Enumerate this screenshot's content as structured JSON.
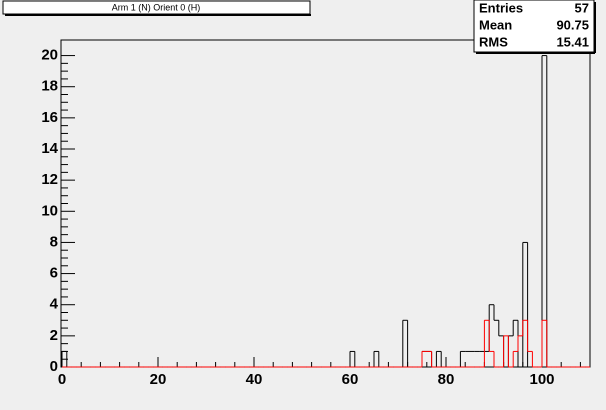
{
  "chart_data": {
    "type": "histogram",
    "title": "Arm 1 (N) Orient 0 (H)",
    "bins": [
      0,
      1,
      2,
      3,
      4,
      5,
      6,
      7,
      8,
      9,
      10,
      11,
      12,
      13,
      14,
      15,
      16,
      17,
      18,
      19,
      20,
      21,
      22,
      23,
      24,
      25,
      26,
      27,
      28,
      29,
      30,
      31,
      32,
      33,
      34,
      35,
      36,
      37,
      38,
      39,
      40,
      41,
      42,
      43,
      44,
      45,
      46,
      47,
      48,
      49,
      50,
      51,
      52,
      53,
      54,
      55,
      56,
      57,
      58,
      59,
      60,
      61,
      62,
      63,
      64,
      65,
      66,
      67,
      68,
      69,
      70,
      71,
      72,
      73,
      74,
      75,
      76,
      77,
      78,
      79,
      80,
      81,
      82,
      83,
      84,
      85,
      86,
      87,
      88,
      89,
      90,
      91,
      92,
      93,
      94,
      95,
      96,
      97,
      98,
      99,
      100,
      101,
      102,
      103,
      104,
      105,
      106,
      107,
      108,
      109,
      110
    ],
    "series": [
      {
        "color": "#000000",
        "values": [
          1,
          0,
          0,
          0,
          0,
          0,
          0,
          0,
          0,
          0,
          0,
          0,
          0,
          0,
          0,
          0,
          0,
          0,
          0,
          0,
          0,
          0,
          0,
          0,
          0,
          0,
          0,
          0,
          0,
          0,
          0,
          0,
          0,
          0,
          0,
          0,
          0,
          0,
          0,
          0,
          0,
          0,
          0,
          0,
          0,
          0,
          0,
          0,
          0,
          0,
          0,
          0,
          0,
          0,
          0,
          0,
          0,
          0,
          0,
          0,
          1,
          0,
          0,
          0,
          0,
          1,
          0,
          0,
          0,
          0,
          0,
          3,
          0,
          0,
          0,
          1,
          1,
          0,
          1,
          0,
          0,
          0,
          0,
          1,
          1,
          1,
          1,
          1,
          1,
          4,
          3,
          2,
          0,
          2,
          3,
          0,
          8,
          0,
          0,
          0,
          20,
          0,
          0,
          0,
          0,
          0,
          0,
          0,
          0,
          0
        ]
      },
      {
        "color": "#ff0000",
        "values": [
          0,
          0,
          0,
          0,
          0,
          0,
          0,
          0,
          0,
          0,
          0,
          0,
          0,
          0,
          0,
          0,
          0,
          0,
          0,
          0,
          0,
          0,
          0,
          0,
          0,
          0,
          0,
          0,
          0,
          0,
          0,
          0,
          0,
          0,
          0,
          0,
          0,
          0,
          0,
          0,
          0,
          0,
          0,
          0,
          0,
          0,
          0,
          0,
          0,
          0,
          0,
          0,
          0,
          0,
          0,
          0,
          0,
          0,
          0,
          0,
          0,
          0,
          0,
          0,
          0,
          0,
          0,
          0,
          0,
          0,
          0,
          0,
          0,
          0,
          0,
          1,
          1,
          0,
          0,
          0,
          0,
          0,
          0,
          0,
          0,
          0,
          0,
          0,
          3,
          1,
          0,
          0,
          2,
          0,
          1,
          2,
          3,
          1,
          0,
          0,
          3,
          0,
          0,
          0,
          0,
          0,
          0,
          0,
          0,
          0
        ]
      }
    ],
    "xlim": [
      0,
      110
    ],
    "xticks": [
      0,
      20,
      40,
      60,
      80,
      100
    ],
    "ylim": [
      0,
      21
    ],
    "yticks": [
      0,
      2,
      4,
      6,
      8,
      10,
      12,
      14,
      16,
      18,
      20
    ],
    "stats": [
      {
        "label": "Entries",
        "value": 57
      },
      {
        "label": "Mean",
        "value": 90.75
      },
      {
        "label": "RMS",
        "value": 15.41
      }
    ]
  }
}
